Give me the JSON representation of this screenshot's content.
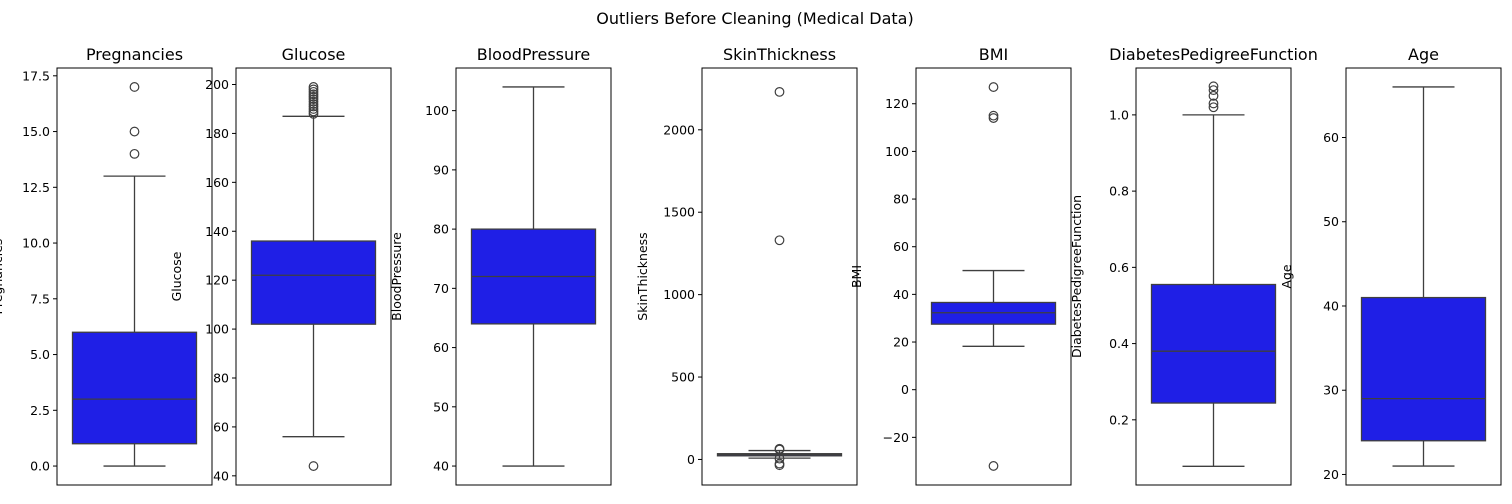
{
  "chart_data": {
    "type": "box",
    "title": "Outliers Before Cleaning (Medical Data)",
    "box_color": "#1f1fe6",
    "line_color": "#3f3f3f",
    "grid": false,
    "panels": [
      {
        "title": "Pregnancies",
        "ylabel": "Pregnancies",
        "ylim": [
          -0.85,
          17.85
        ],
        "ticks": [
          0,
          2.5,
          5,
          7.5,
          10,
          12.5,
          15,
          17.5
        ],
        "tick_labels": [
          "0.0",
          "2.5",
          "5.0",
          "7.5",
          "10.0",
          "12.5",
          "15.0",
          "17.5"
        ],
        "box": {
          "whislo": 0,
          "q1": 1,
          "med": 3,
          "q3": 6,
          "whishi": 13
        },
        "outliers": [
          14,
          15,
          17
        ]
      },
      {
        "title": "Glucose",
        "ylabel": "Glucose",
        "ylim": [
          36.25,
          206.75
        ],
        "ticks": [
          40,
          60,
          80,
          100,
          120,
          140,
          160,
          180,
          200
        ],
        "tick_labels": [
          "40",
          "60",
          "80",
          "100",
          "120",
          "140",
          "160",
          "180",
          "200"
        ],
        "box": {
          "whislo": 56,
          "q1": 102,
          "med": 122,
          "q3": 136,
          "whishi": 187
        },
        "outliers": [
          44,
          188,
          189,
          190,
          191,
          192,
          193,
          194,
          195,
          196,
          197,
          198,
          199
        ]
      },
      {
        "title": "BloodPressure",
        "ylabel": "BloodPressure",
        "ylim": [
          36.8,
          107.2
        ],
        "ticks": [
          40,
          50,
          60,
          70,
          80,
          90,
          100
        ],
        "tick_labels": [
          "40",
          "50",
          "60",
          "70",
          "80",
          "90",
          "100"
        ],
        "box": {
          "whislo": 40,
          "q1": 64,
          "med": 72,
          "q3": 80,
          "whishi": 104
        },
        "outliers": []
      },
      {
        "title": "SkinThickness",
        "ylabel": "SkinThickness",
        "ylim": [
          -155,
          2375
        ],
        "ticks": [
          0,
          500,
          1000,
          1500,
          2000
        ],
        "tick_labels": [
          "0",
          "500",
          "1000",
          "1500",
          "2000"
        ],
        "box": {
          "whislo": 8,
          "q1": 22,
          "med": 29,
          "q3": 35,
          "whishi": 54
        },
        "outliers": [
          -35,
          -25,
          5,
          60,
          65,
          1330,
          2230
        ]
      },
      {
        "title": "BMI",
        "ylabel": "BMI",
        "ylim": [
          -40,
          135
        ],
        "ticks": [
          -20,
          0,
          20,
          40,
          60,
          80,
          100,
          120
        ],
        "tick_labels": [
          "−20",
          "0",
          "20",
          "40",
          "60",
          "80",
          "100",
          "120"
        ],
        "box": {
          "whislo": 18.2,
          "q1": 27.5,
          "med": 32.3,
          "q3": 36.6,
          "whishi": 50
        },
        "outliers": [
          -32,
          114,
          115,
          127
        ]
      },
      {
        "title": "DiabetesPedigreeFunction",
        "ylabel": "DiabetesPedigreeFunction",
        "ylim": [
          0.029,
          1.123
        ],
        "ticks": [
          0.2,
          0.4,
          0.6,
          0.8,
          1.0
        ],
        "tick_labels": [
          "0.2",
          "0.4",
          "0.6",
          "0.8",
          "1.0"
        ],
        "box": {
          "whislo": 0.078,
          "q1": 0.244,
          "med": 0.38,
          "q3": 0.555,
          "whishi": 1.0
        },
        "outliers": [
          1.02,
          1.03,
          1.05,
          1.065,
          1.075
        ]
      },
      {
        "title": "Age",
        "ylabel": "Age",
        "ylim": [
          18.75,
          68.25
        ],
        "ticks": [
          20,
          30,
          40,
          50,
          60
        ],
        "tick_labels": [
          "20",
          "30",
          "40",
          "50",
          "60"
        ],
        "box": {
          "whislo": 21,
          "q1": 24,
          "med": 29,
          "q3": 41,
          "whishi": 66
        },
        "outliers": []
      }
    ]
  }
}
